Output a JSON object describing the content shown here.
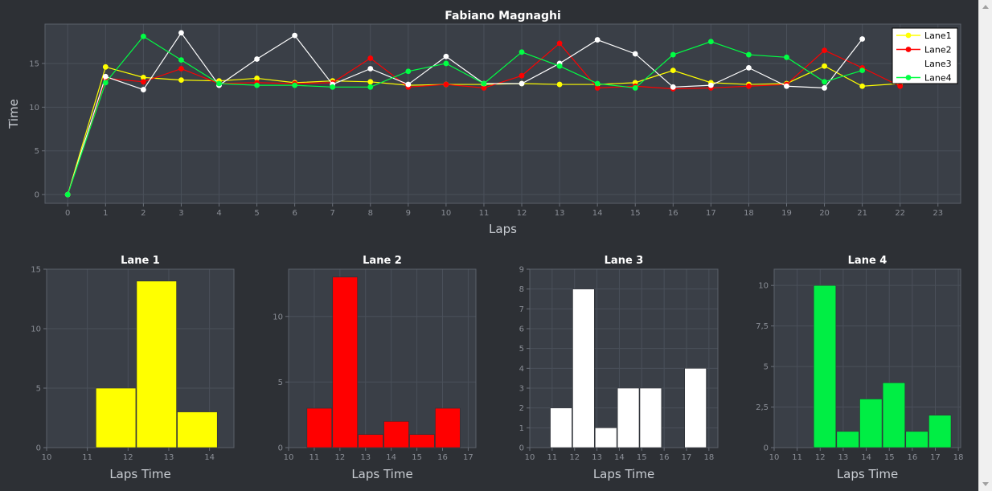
{
  "chart_data": [
    {
      "type": "line",
      "title": "Fabiano Magnaghi",
      "xlabel": "Laps",
      "ylabel": "Time",
      "xlim": [
        -0.6,
        23.6
      ],
      "ylim": [
        -1,
        19.5
      ],
      "x_ticks": [
        0,
        1,
        2,
        3,
        4,
        5,
        6,
        7,
        8,
        9,
        10,
        11,
        12,
        13,
        14,
        15,
        16,
        17,
        18,
        19,
        20,
        21,
        22,
        23
      ],
      "y_ticks": [
        0,
        5,
        10,
        15
      ],
      "legend_position": "top-right",
      "series": [
        {
          "name": "Lane1",
          "color": "#ffff00",
          "x": [
            0,
            1,
            2,
            3,
            4,
            5,
            6,
            7,
            8,
            9,
            10,
            11,
            12,
            13,
            14,
            15,
            16,
            17,
            18,
            19,
            20,
            21,
            22
          ],
          "values": [
            0,
            14.6,
            13.4,
            13.1,
            13.0,
            13.3,
            12.8,
            13.0,
            12.9,
            12.5,
            12.6,
            12.6,
            12.7,
            12.6,
            12.6,
            12.8,
            14.2,
            12.8,
            12.6,
            12.7,
            14.7,
            12.4,
            12.7
          ]
        },
        {
          "name": "Lane2",
          "color": "#ff0000",
          "x": [
            0,
            1,
            2,
            3,
            4,
            5,
            6,
            7,
            8,
            9,
            10,
            11,
            12,
            13,
            14,
            15,
            16,
            17,
            18,
            19,
            20,
            21,
            22
          ],
          "values": [
            0,
            13.3,
            12.9,
            14.4,
            12.7,
            12.8,
            12.7,
            12.8,
            15.6,
            12.3,
            12.6,
            12.2,
            13.6,
            17.3,
            12.2,
            12.4,
            12.1,
            12.2,
            12.4,
            12.6,
            16.5,
            14.5,
            12.4
          ]
        },
        {
          "name": "Lane3",
          "color": "#ffffff",
          "x": [
            0,
            1,
            2,
            3,
            4,
            5,
            6,
            7,
            8,
            9,
            10,
            11,
            12,
            13,
            14,
            15,
            16,
            17,
            18,
            19,
            20,
            21
          ],
          "values": [
            0,
            13.5,
            12.0,
            18.5,
            12.5,
            15.5,
            18.2,
            12.6,
            14.4,
            12.6,
            15.8,
            12.7,
            12.7,
            15.0,
            17.7,
            16.1,
            12.3,
            12.5,
            14.5,
            12.4,
            12.2,
            17.8
          ]
        },
        {
          "name": "Lane4",
          "color": "#00ff44",
          "x": [
            0,
            1,
            2,
            3,
            4,
            5,
            6,
            7,
            8,
            9,
            10,
            11,
            12,
            13,
            14,
            15,
            16,
            17,
            18,
            19,
            20,
            21
          ],
          "values": [
            0,
            12.8,
            18.1,
            15.4,
            12.7,
            12.5,
            12.5,
            12.3,
            12.3,
            14.1,
            15.0,
            12.7,
            16.3,
            14.7,
            12.7,
            12.2,
            16.0,
            17.5,
            16.0,
            15.7,
            12.9,
            14.2
          ]
        }
      ]
    },
    {
      "type": "bar",
      "title": "Lane 1",
      "xlabel": "Laps Time",
      "color": "#ffff00",
      "xlim": [
        10,
        14.6
      ],
      "ylim": [
        0,
        15
      ],
      "x_ticks": [
        10,
        11,
        12,
        13,
        14
      ],
      "y_ticks": [
        0,
        5,
        10,
        15
      ],
      "y_tick_labels": [
        "0",
        "5",
        "10",
        "15"
      ],
      "bins": [
        {
          "x0": 11.2,
          "x1": 12.2,
          "value": 5
        },
        {
          "x0": 12.2,
          "x1": 13.2,
          "value": 14
        },
        {
          "x0": 13.2,
          "x1": 14.2,
          "value": 3
        }
      ]
    },
    {
      "type": "bar",
      "title": "Lane 2",
      "xlabel": "Laps Time",
      "color": "#ff0000",
      "xlim": [
        10,
        17.3
      ],
      "ylim": [
        0,
        13.6
      ],
      "x_ticks": [
        10,
        11,
        12,
        13,
        14,
        15,
        16,
        17
      ],
      "y_ticks": [
        0,
        5,
        10
      ],
      "y_tick_labels": [
        "0",
        "5",
        "10"
      ],
      "bins": [
        {
          "x0": 10.7,
          "x1": 11.7,
          "value": 3
        },
        {
          "x0": 11.7,
          "x1": 12.7,
          "value": 13
        },
        {
          "x0": 12.7,
          "x1": 13.7,
          "value": 1
        },
        {
          "x0": 13.7,
          "x1": 14.7,
          "value": 2
        },
        {
          "x0": 14.7,
          "x1": 15.7,
          "value": 1
        },
        {
          "x0": 15.7,
          "x1": 16.7,
          "value": 3
        }
      ]
    },
    {
      "type": "bar",
      "title": "Lane 3",
      "xlabel": "Laps Time",
      "color": "#ffffff",
      "xlim": [
        10,
        18.4
      ],
      "ylim": [
        0,
        9
      ],
      "x_ticks": [
        10,
        11,
        12,
        13,
        14,
        15,
        16,
        17,
        18
      ],
      "y_ticks": [
        0,
        1,
        2,
        3,
        4,
        5,
        6,
        7,
        8,
        9
      ],
      "y_tick_labels": [
        "0",
        "1",
        "2",
        "3",
        "4",
        "5",
        "6",
        "7",
        "8",
        "9"
      ],
      "bins": [
        {
          "x0": 10.9,
          "x1": 11.9,
          "value": 2
        },
        {
          "x0": 11.9,
          "x1": 12.9,
          "value": 8
        },
        {
          "x0": 12.9,
          "x1": 13.9,
          "value": 1
        },
        {
          "x0": 13.9,
          "x1": 14.9,
          "value": 3
        },
        {
          "x0": 14.9,
          "x1": 15.9,
          "value": 3
        },
        {
          "x0": 16.9,
          "x1": 17.9,
          "value": 4
        }
      ]
    },
    {
      "type": "bar",
      "title": "Lane 4",
      "xlabel": "Laps Time",
      "color": "#00ee44",
      "xlim": [
        10,
        18.1
      ],
      "ylim": [
        0,
        11
      ],
      "x_ticks": [
        10,
        11,
        12,
        13,
        14,
        15,
        16,
        17,
        18
      ],
      "y_ticks": [
        0,
        2.5,
        5,
        7.5,
        10
      ],
      "y_tick_labels": [
        "0",
        "2,5",
        "5",
        "7,5",
        "10"
      ],
      "bins": [
        {
          "x0": 11.7,
          "x1": 12.7,
          "value": 10
        },
        {
          "x0": 12.7,
          "x1": 13.7,
          "value": 1
        },
        {
          "x0": 13.7,
          "x1": 14.7,
          "value": 3
        },
        {
          "x0": 14.7,
          "x1": 15.7,
          "value": 4
        },
        {
          "x0": 15.7,
          "x1": 16.7,
          "value": 1
        },
        {
          "x0": 16.7,
          "x1": 17.7,
          "value": 2
        }
      ]
    }
  ]
}
